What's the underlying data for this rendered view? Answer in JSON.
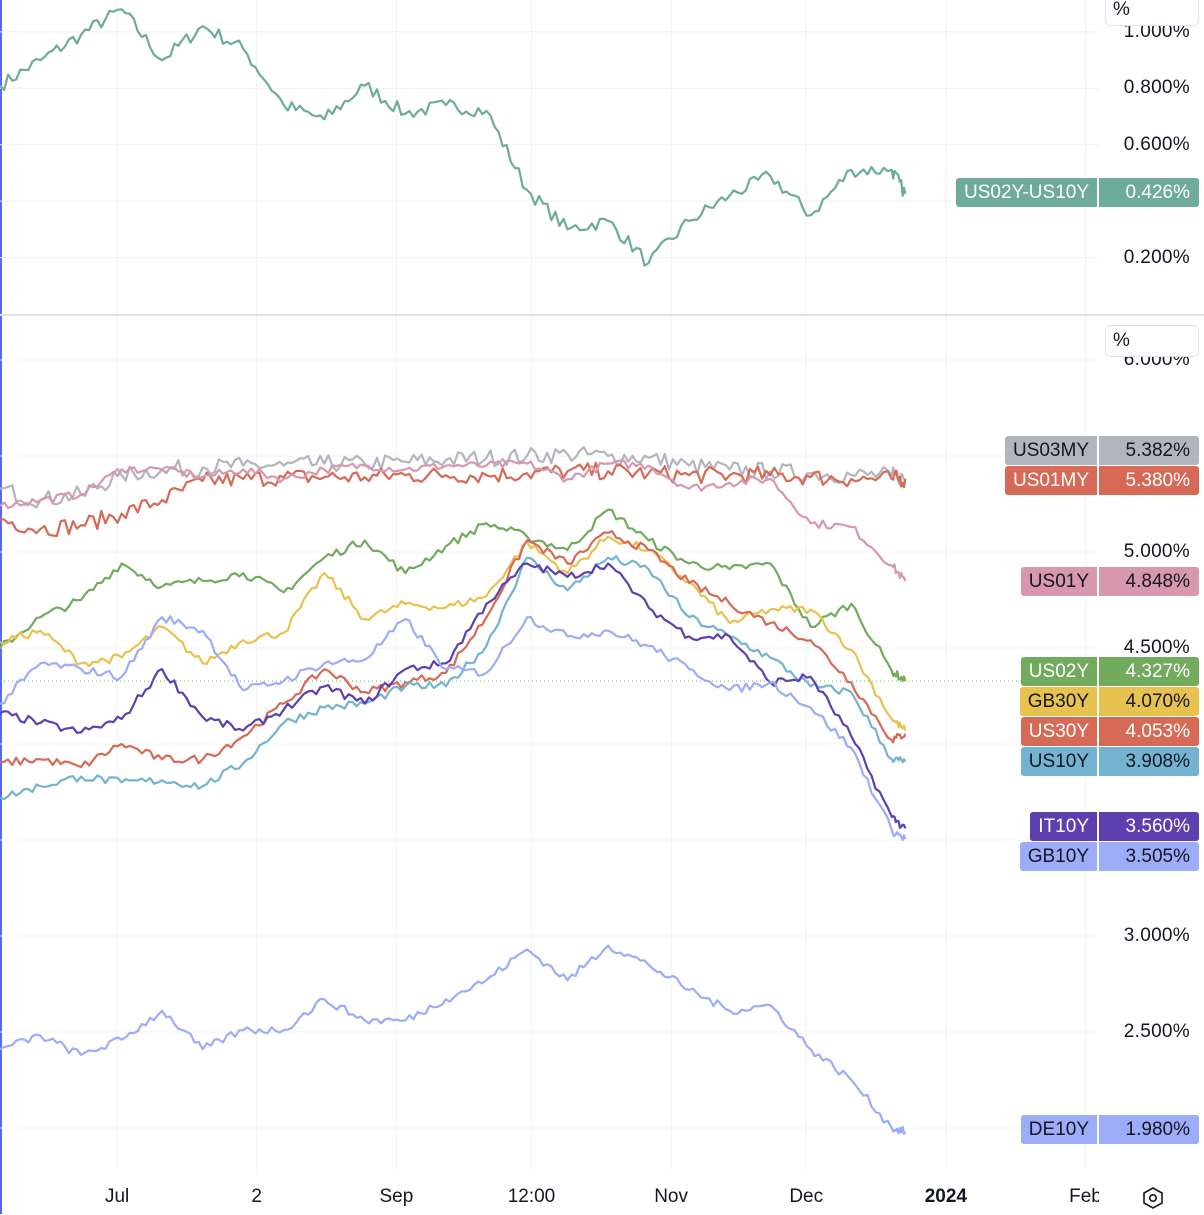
{
  "chart_data": [
    {
      "type": "line",
      "pane": "top",
      "unit_label": "%",
      "ylim": [
        0.0,
        1.113
      ],
      "grid": true,
      "y_ticks": [
        {
          "value": 1.0,
          "label": "1.000%"
        },
        {
          "value": 0.8,
          "label": "0.800%"
        },
        {
          "value": 0.6,
          "label": "0.600%"
        },
        {
          "value": 0.2,
          "label": "0.200%"
        }
      ],
      "gridlines": [
        1.0,
        0.8,
        0.6,
        0.4,
        0.2
      ],
      "x": [
        "2023-06-05",
        "2023-06-14",
        "2023-06-23",
        "2023-07-02",
        "2023-07-11",
        "2023-07-20",
        "2023-07-29",
        "2023-08-07",
        "2023-08-16",
        "2023-08-25",
        "2023-09-03",
        "2023-09-12",
        "2023-09-21",
        "2023-09-30",
        "2023-10-09",
        "2023-10-18",
        "2023-10-27",
        "2023-11-05",
        "2023-11-14",
        "2023-11-23",
        "2023-12-02",
        "2023-12-11",
        "2023-12-20",
        "2023-12-23"
      ],
      "series": [
        {
          "name": "US02Y-US10Y",
          "last_value": "0.426%",
          "color": "#6eab9a",
          "text_color": "#ffffff",
          "values": [
            0.81,
            0.9,
            0.99,
            1.08,
            0.9,
            1.02,
            0.94,
            0.74,
            0.69,
            0.81,
            0.71,
            0.74,
            0.72,
            0.44,
            0.3,
            0.33,
            0.18,
            0.33,
            0.42,
            0.49,
            0.35,
            0.51,
            0.51,
            0.426
          ]
        }
      ]
    },
    {
      "type": "line",
      "pane": "bottom",
      "unit_label": "%",
      "ylim": [
        1.781,
        6.229
      ],
      "grid": true,
      "y_ticks": [
        {
          "value": 6.0,
          "label": "6.000%"
        },
        {
          "value": 5.0,
          "label": "5.000%"
        },
        {
          "value": 4.5,
          "label": "4.500%"
        },
        {
          "value": 3.0,
          "label": "3.000%"
        },
        {
          "value": 2.5,
          "label": "2.500%"
        }
      ],
      "gridlines": [
        6.0,
        5.5,
        5.0,
        4.5,
        4.0,
        3.5,
        3.0,
        2.5,
        2.0
      ],
      "x": [
        "2023-06-05",
        "2023-06-14",
        "2023-06-23",
        "2023-07-02",
        "2023-07-11",
        "2023-07-20",
        "2023-07-29",
        "2023-08-07",
        "2023-08-16",
        "2023-08-25",
        "2023-09-03",
        "2023-09-12",
        "2023-09-21",
        "2023-09-30",
        "2023-10-09",
        "2023-10-18",
        "2023-10-27",
        "2023-11-05",
        "2023-11-14",
        "2023-11-23",
        "2023-12-02",
        "2023-12-11",
        "2023-12-20",
        "2023-12-23"
      ],
      "series": [
        {
          "name": "US03MY",
          "last_value": "5.382%",
          "color": "#b2b5be",
          "text_color": "#131722",
          "values": [
            5.33,
            5.27,
            5.3,
            5.4,
            5.43,
            5.44,
            5.45,
            5.45,
            5.46,
            5.46,
            5.47,
            5.48,
            5.49,
            5.5,
            5.51,
            5.5,
            5.49,
            5.45,
            5.43,
            5.42,
            5.41,
            5.4,
            5.4,
            5.382
          ]
        },
        {
          "name": "US01MY",
          "last_value": "5.380%",
          "color": "#d66a56",
          "text_color": "#ffffff",
          "values": [
            5.17,
            5.12,
            5.14,
            5.2,
            5.27,
            5.37,
            5.38,
            5.39,
            5.39,
            5.39,
            5.4,
            5.4,
            5.4,
            5.41,
            5.42,
            5.42,
            5.41,
            5.4,
            5.4,
            5.4,
            5.39,
            5.38,
            5.38,
            5.38
          ]
        },
        {
          "name": "US01Y",
          "last_value": "4.848%",
          "color": "#d797ad",
          "text_color": "#131722",
          "values": [
            5.24,
            5.27,
            5.3,
            5.43,
            5.43,
            5.39,
            5.43,
            5.38,
            5.43,
            5.45,
            5.43,
            5.45,
            5.45,
            5.46,
            5.38,
            5.46,
            5.45,
            5.33,
            5.36,
            5.38,
            5.15,
            5.13,
            4.93,
            4.848
          ]
        },
        {
          "name": "US02Y",
          "last_value": "4.327%",
          "color": "#72aa5e",
          "text_color": "#ffffff",
          "values": [
            4.5,
            4.66,
            4.75,
            4.94,
            4.82,
            4.85,
            4.89,
            4.79,
            4.97,
            5.06,
            4.89,
            5.03,
            5.15,
            5.08,
            5.01,
            5.22,
            5.06,
            4.94,
            4.91,
            4.94,
            4.61,
            4.73,
            4.38,
            4.327
          ]
        },
        {
          "name": "GB30Y",
          "last_value": "4.070%",
          "color": "#e8c24e",
          "text_color": "#131722",
          "values": [
            4.53,
            4.59,
            4.42,
            4.45,
            4.61,
            4.42,
            4.54,
            4.58,
            4.89,
            4.65,
            4.73,
            4.71,
            4.77,
            5.05,
            4.89,
            5.08,
            5.01,
            4.84,
            4.63,
            4.7,
            4.7,
            4.49,
            4.13,
            4.07
          ]
        },
        {
          "name": "US30Y",
          "last_value": "4.053%",
          "color": "#d66a56",
          "text_color": "#ffffff",
          "values": [
            3.9,
            3.92,
            3.88,
            4.0,
            3.92,
            3.92,
            4.04,
            4.21,
            4.39,
            4.27,
            4.32,
            4.37,
            4.66,
            5.06,
            4.94,
            5.1,
            5.01,
            4.84,
            4.73,
            4.63,
            4.54,
            4.32,
            4.02,
            4.053
          ]
        },
        {
          "name": "US10Y",
          "last_value": "3.908%",
          "color": "#74b3d0",
          "text_color": "#131722",
          "values": [
            3.72,
            3.78,
            3.83,
            3.8,
            3.81,
            3.78,
            3.9,
            4.11,
            4.19,
            4.21,
            4.3,
            4.3,
            4.51,
            4.97,
            4.8,
            4.97,
            4.91,
            4.66,
            4.56,
            4.45,
            4.3,
            4.27,
            3.92,
            3.908
          ]
        },
        {
          "name": "IT10Y",
          "last_value": "3.560%",
          "color": "#5d3fb0",
          "text_color": "#ffffff",
          "values": [
            4.16,
            4.11,
            4.06,
            4.13,
            4.39,
            4.14,
            4.07,
            4.18,
            4.3,
            4.21,
            4.39,
            4.42,
            4.73,
            4.94,
            4.87,
            4.94,
            4.71,
            4.56,
            4.56,
            4.32,
            4.35,
            4.04,
            3.62,
            3.56
          ]
        },
        {
          "name": "GB10Y",
          "last_value": "3.505%",
          "color": "#9cacf8",
          "text_color": "#131722",
          "values": [
            4.21,
            4.42,
            4.39,
            4.35,
            4.66,
            4.59,
            4.28,
            4.33,
            4.42,
            4.44,
            4.65,
            4.39,
            4.37,
            4.66,
            4.56,
            4.59,
            4.51,
            4.39,
            4.28,
            4.32,
            4.19,
            3.98,
            3.55,
            3.505
          ]
        },
        {
          "name": "DE10Y",
          "last_value": "1.980%",
          "color": "#9cacf8",
          "text_color": "#131722",
          "values": [
            2.41,
            2.48,
            2.38,
            2.46,
            2.61,
            2.41,
            2.51,
            2.51,
            2.67,
            2.56,
            2.56,
            2.67,
            2.77,
            2.93,
            2.77,
            2.95,
            2.85,
            2.72,
            2.61,
            2.64,
            2.41,
            2.25,
            2.0,
            1.98
          ]
        }
      ]
    }
  ],
  "x_axis": {
    "xlim": [
      "2023-06-05",
      "2024-02-04"
    ],
    "ticks": [
      {
        "date": "2023-07-01",
        "label": "Jul",
        "bold": false
      },
      {
        "date": "2023-08-01",
        "label": "2",
        "bold": false
      },
      {
        "date": "2023-09-01",
        "label": "Sep",
        "bold": false
      },
      {
        "date": "2023-10-01",
        "label": "12:00",
        "bold": false
      },
      {
        "date": "2023-11-01",
        "label": "Nov",
        "bold": false
      },
      {
        "date": "2023-12-01",
        "label": "Dec",
        "bold": false
      },
      {
        "date": "2024-01-01",
        "label": "2024",
        "bold": true
      },
      {
        "date": "2024-02-01",
        "label": "Feb",
        "bold": false
      }
    ]
  },
  "controls": {
    "settings_icon": "settings-hexagon-icon"
  },
  "colors": {
    "left_edge": "#5468f2",
    "crosshair_line": "#72aa5e"
  }
}
